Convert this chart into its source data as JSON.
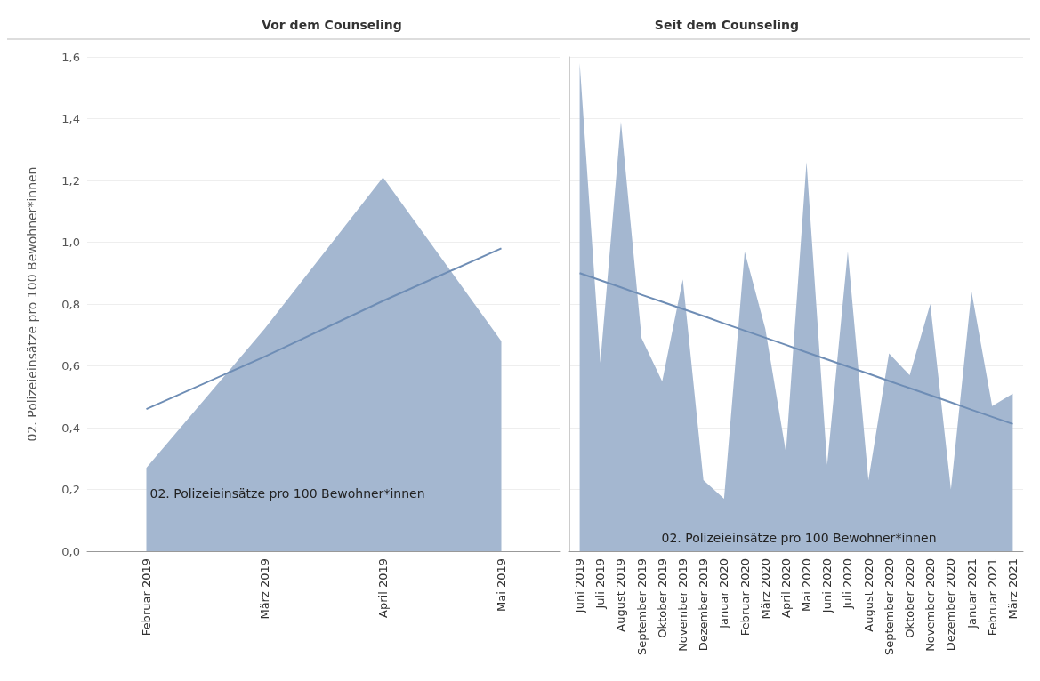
{
  "chart_data": [
    {
      "type": "area",
      "title": "Vor dem Counseling",
      "ylabel": "02. Polizeieinsätze pro 100 Bewohner*innen",
      "categories": [
        "Februar 2019",
        "März 2019",
        "April 2019",
        "Mai 2019"
      ],
      "series": [
        {
          "type": "area",
          "color": "#a4b7d0",
          "values": [
            0.27,
            0.72,
            1.21,
            0.68
          ]
        },
        {
          "type": "line",
          "color": "#6e8db5",
          "values": [
            0.46,
            0.63,
            0.81,
            0.98
          ]
        }
      ],
      "ylim": [
        0,
        1.6
      ],
      "yticks": [
        {
          "value": 0,
          "label": "0,0"
        },
        {
          "value": 0.2,
          "label": "0,2"
        },
        {
          "value": 0.4,
          "label": "0,4"
        },
        {
          "value": 0.6,
          "label": "0,6"
        },
        {
          "value": 0.8,
          "label": "0,8"
        },
        {
          "value": 1,
          "label": "1,0"
        },
        {
          "value": 1.2,
          "label": "1,2"
        },
        {
          "value": 1.4,
          "label": "1,4"
        },
        {
          "value": 1.6,
          "label": "1,6"
        }
      ],
      "grid": "y",
      "marker": "none",
      "annotations": [
        "02. Polizeieinsätze pro 100 Bewohner*innen"
      ]
    },
    {
      "type": "area",
      "title": "Seit dem Counseling",
      "categories": [
        "Juni 2019",
        "Juli 2019",
        "August 2019",
        "September 2019",
        "Oktober 2019",
        "November 2019",
        "Dezember 2019",
        "Januar 2020",
        "Februar 2020",
        "März 2020",
        "April 2020",
        "Mai 2020",
        "Juni 2020",
        "Juli 2020",
        "August 2020",
        "September 2020",
        "Oktober 2020",
        "November 2020",
        "Dezember 2020",
        "Januar 2021",
        "Februar 2021",
        "März 2021"
      ],
      "series": [
        {
          "type": "area",
          "color": "#a4b7d0",
          "values": [
            1.58,
            0.61,
            1.39,
            0.69,
            0.55,
            0.88,
            0.23,
            0.17,
            0.97,
            0.72,
            0.32,
            1.26,
            0.28,
            0.97,
            0.23,
            0.64,
            0.57,
            0.8,
            0.2,
            0.84,
            0.47,
            0.51
          ]
        },
        {
          "type": "line",
          "color": "#6e8db5",
          "values": [
            0.9,
            0.877,
            0.854,
            0.83,
            0.807,
            0.784,
            0.761,
            0.737,
            0.714,
            0.691,
            0.668,
            0.644,
            0.621,
            0.598,
            0.575,
            0.551,
            0.528,
            0.505,
            0.482,
            0.458,
            0.435,
            0.412
          ]
        }
      ],
      "ylim": [
        0,
        1.6
      ],
      "yticks": [
        0,
        0.2,
        0.4,
        0.6,
        0.8,
        1,
        1.2,
        1.4,
        1.6
      ],
      "tick_labels": "x",
      "grid": "y",
      "marker": "none",
      "annotations": [
        "02. Polizeieinsätze pro 100 Bewohner*innen"
      ]
    }
  ]
}
